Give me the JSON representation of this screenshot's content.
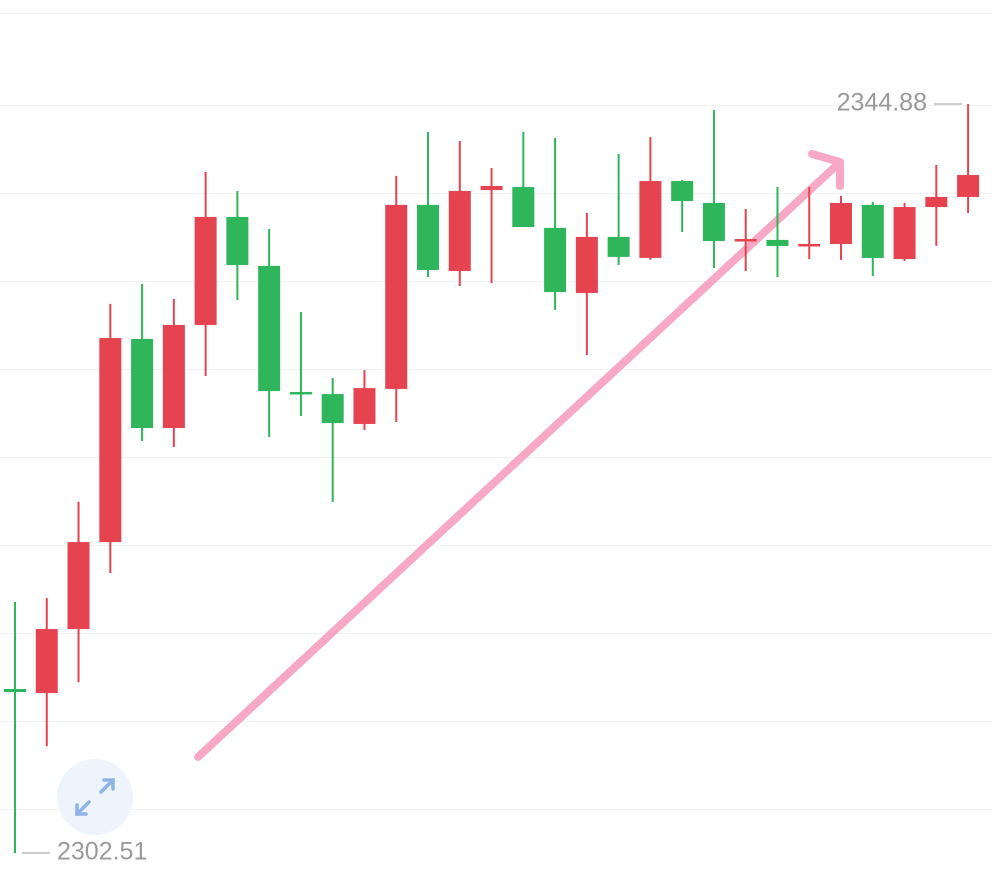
{
  "chart_data": {
    "type": "candlestick",
    "up_color": "#e5434f",
    "down_color": "#2fb55a",
    "ylim": [
      2300.76,
      2350.76
    ],
    "open": [
      2311.79,
      2311.56,
      2315.18,
      2320.1,
      2331.59,
      2326.55,
      2332.38,
      2338.49,
      2335.72,
      2328.59,
      2328.47,
      2326.78,
      2328.76,
      2339.17,
      2335.43,
      2340.01,
      2340.18,
      2337.87,
      2334.19,
      2337.36,
      2336.17,
      2340.52,
      2339.28,
      2337.13,
      2337.19,
      2336.85,
      2336.96,
      2339.17,
      2336.11,
      2339.05,
      2339.62
    ],
    "high": [
      2316.71,
      2316.93,
      2322.37,
      2333.57,
      2334.7,
      2333.85,
      2341.03,
      2339.96,
      2337.81,
      2333.11,
      2329.38,
      2329.83,
      2340.81,
      2343.3,
      2342.79,
      2341.26,
      2343.3,
      2342.96,
      2338.71,
      2342.05,
      2343.01,
      2340.58,
      2344.54,
      2338.94,
      2340.18,
      2340.18,
      2339.68,
      2339.34,
      2339.28,
      2341.43,
      2344.88
    ],
    "low": [
      2302.51,
      2308.56,
      2312.18,
      2318.35,
      2325.82,
      2325.48,
      2329.49,
      2333.79,
      2326.04,
      2327.23,
      2322.37,
      2326.44,
      2326.89,
      2335.09,
      2334.58,
      2334.75,
      2337.92,
      2333.23,
      2330.68,
      2335.77,
      2336.06,
      2337.64,
      2335.6,
      2335.43,
      2335.09,
      2336.11,
      2336.06,
      2335.15,
      2336.0,
      2336.85,
      2338.71
    ],
    "close": [
      2311.62,
      2315.18,
      2320.1,
      2331.64,
      2326.55,
      2332.38,
      2338.49,
      2335.77,
      2328.64,
      2328.53,
      2326.83,
      2328.81,
      2339.17,
      2335.49,
      2339.96,
      2340.24,
      2337.92,
      2334.24,
      2337.36,
      2336.23,
      2340.52,
      2339.39,
      2337.13,
      2337.24,
      2336.85,
      2336.96,
      2339.28,
      2336.17,
      2339.05,
      2339.62,
      2340.86
    ],
    "max_label": 2344.88,
    "min_label": 2302.51
  }
}
